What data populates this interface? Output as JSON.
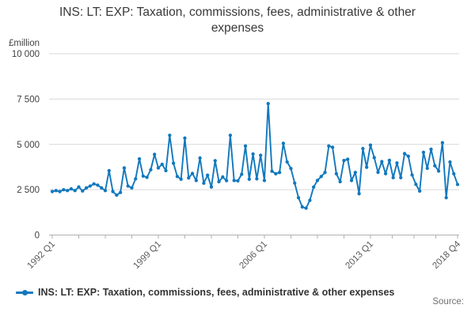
{
  "title": "INS: LT: EXP: Taxation, commissions, fees, administrative & other expenses",
  "legend": {
    "label": "INS: LT: EXP: Taxation, commissions, fees, administrative & other expenses"
  },
  "source_label": "Source:",
  "colors": {
    "line": "#1178be",
    "grid": "#d9d9d9",
    "axis": "#b0b0b0",
    "tick_text": "#595959",
    "axis_text": "#404040"
  },
  "y_axis": {
    "unit": "£million",
    "tick_labels": [
      "0",
      "2 500",
      "5 000",
      "7 500",
      "10 000"
    ],
    "tick_values": [
      0,
      2500,
      5000,
      7500,
      10000
    ]
  },
  "x_axis": {
    "tick_labels": [
      "1992 Q1",
      "1999 Q1",
      "2006 Q1",
      "2013 Q1",
      "2018 Q4"
    ],
    "tick_quarters": [
      0,
      28,
      56,
      84,
      107
    ],
    "minors_between": 3
  },
  "chart_data": {
    "type": "line",
    "title": "INS: LT: EXP: Taxation, commissions, fees, administrative & other expenses",
    "ylabel": "£million",
    "ylim": [
      0,
      10000
    ],
    "x_start": "1992 Q1",
    "x_end": "2018 Q4",
    "frequency": "quarterly",
    "legend_position": "bottom-left",
    "grid": "horizontal",
    "series": [
      {
        "name": "INS: LT: EXP: Taxation, commissions, fees, administrative & other expenses",
        "values": [
          2400,
          2450,
          2400,
          2500,
          2450,
          2550,
          2450,
          2650,
          2430,
          2600,
          2700,
          2820,
          2750,
          2600,
          2450,
          3550,
          2400,
          2200,
          2350,
          3700,
          2700,
          2600,
          3100,
          4200,
          3250,
          3180,
          3600,
          4450,
          3700,
          3900,
          3550,
          5500,
          3960,
          3230,
          3080,
          5350,
          3150,
          3400,
          3010,
          4250,
          2860,
          3300,
          2650,
          4100,
          2940,
          3200,
          3000,
          5500,
          3010,
          2990,
          3350,
          4910,
          3080,
          4470,
          3100,
          4400,
          3010,
          7250,
          3520,
          3380,
          3450,
          5060,
          4030,
          3670,
          2865,
          2060,
          1550,
          1480,
          1915,
          2645,
          3010,
          3230,
          3450,
          4910,
          4840,
          3380,
          2940,
          4110,
          4180,
          3010,
          3450,
          2280,
          4770,
          3740,
          4960,
          4270,
          3460,
          4050,
          3385,
          4120,
          3165,
          3975,
          3165,
          4490,
          4345,
          3310,
          2795,
          2425,
          4565,
          3680,
          4730,
          3820,
          3530,
          5090,
          2060,
          4030,
          3380,
          2790
        ]
      }
    ]
  }
}
